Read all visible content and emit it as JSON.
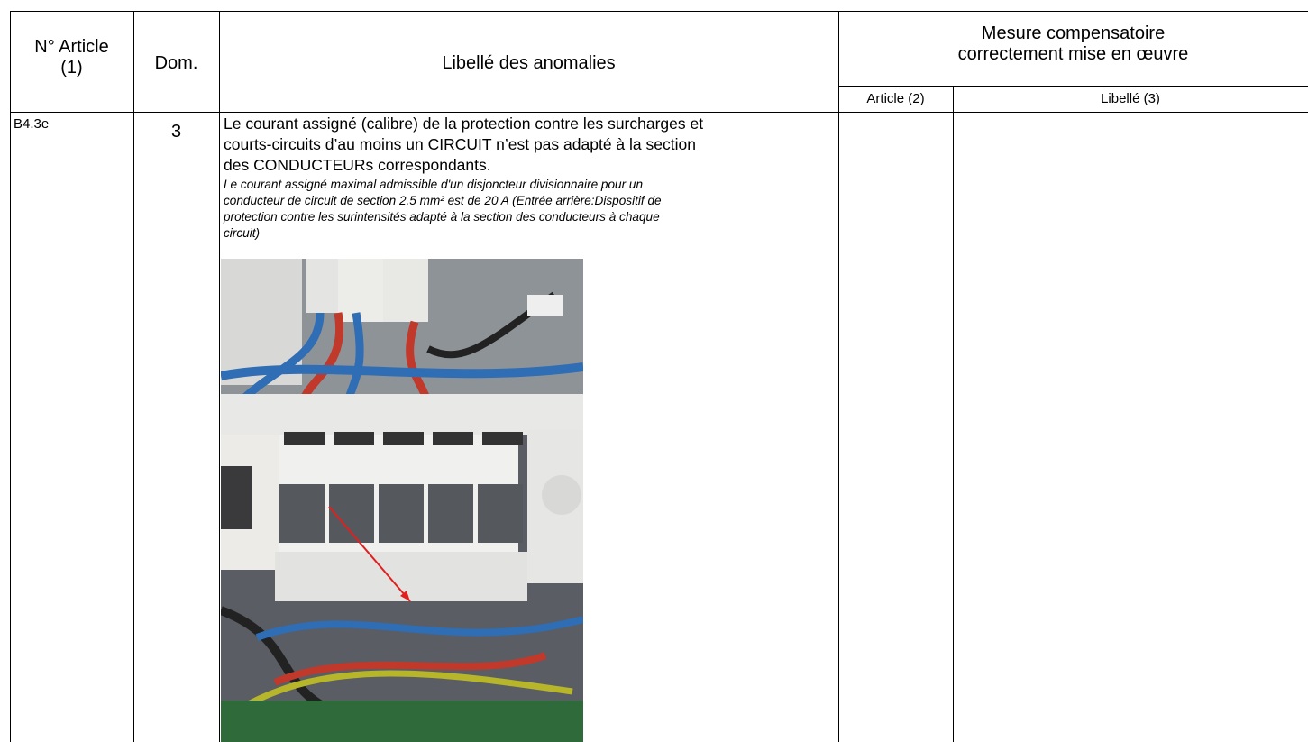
{
  "table": {
    "header": {
      "article": [
        "N° Article",
        "(1)"
      ],
      "dom": "Dom.",
      "libelle": "Libellé des anomalies",
      "mesure": [
        "Mesure compensatoire",
        "correctement mise en œuvre"
      ],
      "mesure_article": "Article (2)",
      "mesure_libelle": "Libellé (3)"
    },
    "rows": [
      {
        "article": "B4.3e",
        "dom": "3",
        "libelle": [
          "Le courant assigné (calibre) de la protection contre les surcharges et",
          "courts-circuits d’au moins un CIRCUIT n’est pas adapté à la section",
          "des CONDUCTEURs correspondants."
        ],
        "detail": [
          "Le courant assigné maximal admissible d'un disjoncteur divisionnaire pour un",
          "conducteur de circuit de section 2.5 mm² est de 20 A (Entrée arrière:Dispositif de",
          "protection contre les surintensités adapté à la section des conducteurs à chaque",
          "circuit)"
        ]
      }
    ]
  }
}
